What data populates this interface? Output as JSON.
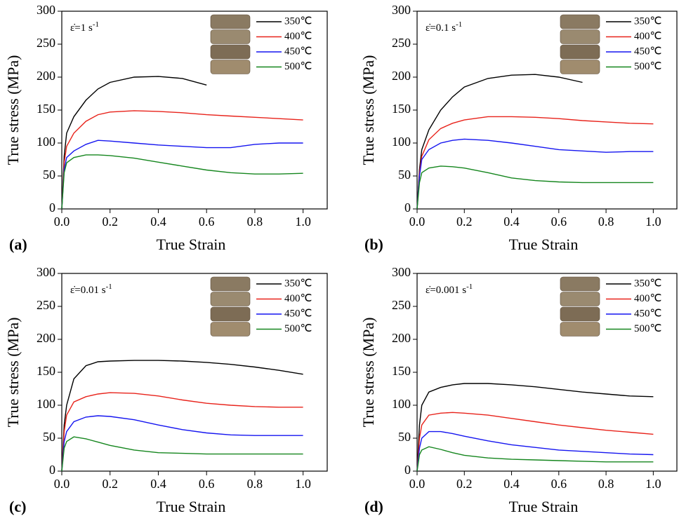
{
  "chart_data": [
    {
      "type": "line",
      "panel_label": "(a)",
      "annotation": {
        "text": "ε̇=1 s",
        "superscript": "-1"
      },
      "x_label": "True Strain",
      "y_label": "True stress (MPa)",
      "x": [
        0,
        0.01,
        0.02,
        0.05,
        0.1,
        0.15,
        0.2,
        0.3,
        0.4,
        0.5,
        0.6,
        0.7,
        0.8,
        0.9,
        1.0
      ],
      "series": [
        {
          "name": "350℃",
          "color": "#000000",
          "values": [
            0,
            80,
            115,
            140,
            165,
            182,
            192,
            200,
            201,
            198,
            188,
            null,
            null,
            null,
            null
          ]
        },
        {
          "name": "400℃",
          "color": "#e8231b",
          "values": [
            0,
            70,
            95,
            115,
            133,
            143,
            147,
            149,
            148,
            146,
            143,
            141,
            139,
            137,
            135
          ]
        },
        {
          "name": "450℃",
          "color": "#1515f0",
          "values": [
            0,
            60,
            78,
            88,
            98,
            104,
            103,
            100,
            97,
            95,
            93,
            93,
            98,
            100,
            100
          ]
        },
        {
          "name": "500℃",
          "color": "#15861e",
          "values": [
            0,
            55,
            70,
            78,
            82,
            82,
            81,
            77,
            71,
            65,
            59,
            55,
            53,
            53,
            54
          ]
        }
      ],
      "xlim": [
        0,
        1.1
      ],
      "ylim": [
        0,
        300
      ],
      "xticks": [
        {
          "value": 0,
          "label": "0.0"
        },
        {
          "value": 0.2,
          "label": "0.2"
        },
        {
          "value": 0.4,
          "label": "0.4"
        },
        {
          "value": 0.6,
          "label": "0.6"
        },
        {
          "value": 0.8,
          "label": "0.8"
        },
        {
          "value": 1.0,
          "label": "1.0"
        }
      ],
      "yticks": [
        0,
        50,
        100,
        150,
        200,
        250,
        300
      ]
    },
    {
      "type": "line",
      "panel_label": "(b)",
      "annotation": {
        "text": "ε̇=0.1 s",
        "superscript": "-1"
      },
      "x_label": "True Strain",
      "y_label": "True stress (MPa)",
      "x": [
        0,
        0.01,
        0.02,
        0.05,
        0.1,
        0.15,
        0.2,
        0.3,
        0.4,
        0.5,
        0.6,
        0.7,
        0.8,
        0.9,
        1.0
      ],
      "series": [
        {
          "name": "350℃",
          "color": "#000000",
          "values": [
            0,
            60,
            90,
            120,
            150,
            170,
            185,
            198,
            203,
            204,
            200,
            192,
            null,
            null,
            null
          ]
        },
        {
          "name": "400℃",
          "color": "#e8231b",
          "values": [
            0,
            55,
            80,
            105,
            122,
            130,
            135,
            140,
            140,
            139,
            137,
            134,
            132,
            130,
            129
          ]
        },
        {
          "name": "450℃",
          "color": "#1515f0",
          "values": [
            0,
            50,
            75,
            90,
            100,
            104,
            106,
            104,
            100,
            95,
            90,
            88,
            86,
            87,
            87
          ]
        },
        {
          "name": "500℃",
          "color": "#15861e",
          "values": [
            0,
            40,
            55,
            62,
            65,
            64,
            62,
            55,
            47,
            43,
            41,
            40,
            40,
            40,
            40
          ]
        }
      ],
      "xlim": [
        0,
        1.1
      ],
      "ylim": [
        0,
        300
      ],
      "xticks": [
        {
          "value": 0,
          "label": "0.0"
        },
        {
          "value": 0.2,
          "label": "0.2"
        },
        {
          "value": 0.4,
          "label": "0.4"
        },
        {
          "value": 0.6,
          "label": "0.6"
        },
        {
          "value": 0.8,
          "label": "0.8"
        },
        {
          "value": 1.0,
          "label": "1.0"
        }
      ],
      "yticks": [
        0,
        50,
        100,
        150,
        200,
        250,
        300
      ]
    },
    {
      "type": "line",
      "panel_label": "(c)",
      "annotation": {
        "text": "ε̇=0.01 s",
        "superscript": "-1"
      },
      "x_label": "True Strain",
      "y_label": "True stress (MPa)",
      "x": [
        0,
        0.01,
        0.02,
        0.05,
        0.1,
        0.15,
        0.2,
        0.3,
        0.4,
        0.5,
        0.6,
        0.7,
        0.8,
        0.9,
        1.0
      ],
      "series": [
        {
          "name": "350℃",
          "color": "#000000",
          "values": [
            0,
            70,
            100,
            140,
            160,
            166,
            167,
            168,
            168,
            167,
            165,
            162,
            158,
            153,
            147
          ]
        },
        {
          "name": "400℃",
          "color": "#e8231b",
          "values": [
            0,
            60,
            85,
            105,
            113,
            117,
            119,
            118,
            114,
            108,
            103,
            100,
            98,
            97,
            97
          ]
        },
        {
          "name": "450℃",
          "color": "#1515f0",
          "values": [
            0,
            45,
            60,
            75,
            82,
            84,
            83,
            78,
            70,
            63,
            58,
            55,
            54,
            54,
            54
          ]
        },
        {
          "name": "500℃",
          "color": "#15861e",
          "values": [
            0,
            35,
            45,
            52,
            49,
            44,
            39,
            32,
            28,
            27,
            26,
            26,
            26,
            26,
            26
          ]
        }
      ],
      "xlim": [
        0,
        1.1
      ],
      "ylim": [
        0,
        300
      ],
      "xticks": [
        {
          "value": 0,
          "label": "0.0"
        },
        {
          "value": 0.2,
          "label": "0.2"
        },
        {
          "value": 0.4,
          "label": "0.4"
        },
        {
          "value": 0.6,
          "label": "0.6"
        },
        {
          "value": 0.8,
          "label": "0.8"
        },
        {
          "value": 1.0,
          "label": "1.0"
        }
      ],
      "yticks": [
        0,
        50,
        100,
        150,
        200,
        250,
        300
      ]
    },
    {
      "type": "line",
      "panel_label": "(d)",
      "annotation": {
        "text": "ε̇=0.001 s",
        "superscript": "-1"
      },
      "x_label": "True Strain",
      "y_label": "True stress (MPa)",
      "x": [
        0,
        0.01,
        0.02,
        0.05,
        0.1,
        0.15,
        0.2,
        0.3,
        0.4,
        0.5,
        0.6,
        0.7,
        0.8,
        0.9,
        1.0
      ],
      "series": [
        {
          "name": "350℃",
          "color": "#000000",
          "values": [
            0,
            70,
            100,
            120,
            127,
            131,
            133,
            133,
            131,
            128,
            124,
            120,
            117,
            114,
            113
          ]
        },
        {
          "name": "400℃",
          "color": "#e8231b",
          "values": [
            0,
            50,
            70,
            85,
            88,
            89,
            88,
            85,
            80,
            75,
            70,
            66,
            62,
            59,
            56
          ]
        },
        {
          "name": "450℃",
          "color": "#1515f0",
          "values": [
            0,
            35,
            50,
            60,
            60,
            57,
            53,
            46,
            40,
            36,
            32,
            30,
            28,
            26,
            25
          ]
        },
        {
          "name": "500℃",
          "color": "#15861e",
          "values": [
            0,
            25,
            32,
            37,
            33,
            28,
            24,
            20,
            18,
            17,
            16,
            15,
            14,
            14,
            14
          ]
        }
      ],
      "xlim": [
        0,
        1.1
      ],
      "ylim": [
        0,
        300
      ],
      "xticks": [
        {
          "value": 0,
          "label": "0.0"
        },
        {
          "value": 0.2,
          "label": "0.2"
        },
        {
          "value": 0.4,
          "label": "0.4"
        },
        {
          "value": 0.6,
          "label": "0.6"
        },
        {
          "value": 0.8,
          "label": "0.8"
        },
        {
          "value": 1.0,
          "label": "1.0"
        }
      ],
      "yticks": [
        0,
        50,
        100,
        150,
        200,
        250,
        300
      ]
    }
  ]
}
